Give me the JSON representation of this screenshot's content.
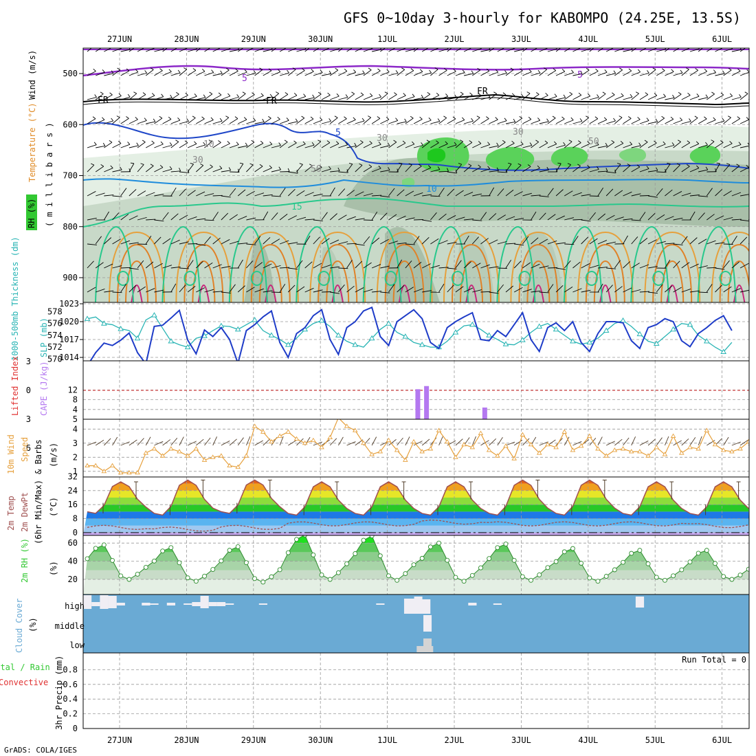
{
  "chart_data": {
    "type": "meteogram",
    "title": "GFS 0~10day 3-hourly for KABOMPO (24.25E, 13.5S)",
    "footer": "GrADS: COLA/IGES",
    "run_total_label": "Run Total = 0",
    "dates": [
      "27JUN",
      "28JUN",
      "29JUN",
      "30JUN",
      "1JUL",
      "2JUL",
      "3JUL",
      "4JUL",
      "5JUL",
      "6JUL"
    ],
    "colors": {
      "sea": "#6aaad4",
      "cloud_white": "#f0eef4",
      "cloud_grey": "#d4d4d4",
      "slp_line": "#1e3cc8",
      "thick_line": "#28b4b4",
      "cape_bar": "#b478f0",
      "wind_line": "#e6a03c",
      "rh_green": "#32c832",
      "temp_orange": "#e08c28",
      "temp_dew": "#a05050",
      "frz": "#000000"
    },
    "panels": {
      "upper": {
        "ylabel_wind": "Wind (m/s)",
        "ylabel_temp": "Temperature (°C)",
        "ylabel_rh": "RH (%)",
        "ylabel_mb": "( m i l l i b a r s )",
        "pressure_ticks": [
          500,
          600,
          700,
          800,
          900
        ],
        "contour_labels": [
          "5",
          "5",
          "FR",
          "FR",
          "FR",
          "5",
          "10",
          "15",
          "10",
          "30",
          "30",
          "50",
          "50",
          "30"
        ]
      },
      "slp": {
        "ylabel_left": "1000-500mb Thickness (dm)",
        "ylabel_right": "SLP (mb)",
        "left_ticks": [
          570,
          572,
          574,
          576,
          578
        ],
        "right_ticks": [
          1014,
          1017,
          1020,
          1023
        ],
        "slp_mb": [
          1012.6,
          1014.8,
          1016.4,
          1016.0,
          1016.9,
          1018.1,
          1014.8,
          1012.9,
          1019.2,
          1019.4,
          1020.6,
          1021.9,
          1016.9,
          1014.6,
          1018.6,
          1017.5,
          1019.0,
          1017.0,
          1013.0,
          1018.5,
          1019.5,
          1020.8,
          1021.8,
          1016.5,
          1014.0,
          1018.0,
          1019.0,
          1021.0,
          1022.0,
          1017.0,
          1014.5,
          1019.0,
          1020.0,
          1021.8,
          1022.4,
          1017.5,
          1016.0,
          1020.0,
          1021.0,
          1022.0,
          1020.5,
          1016.5,
          1015.5,
          1019.0,
          1020.0,
          1020.8,
          1021.5,
          1017.0,
          1016.8,
          1018.5,
          1017.5,
          1019.5,
          1021.5,
          1017.0,
          1015.0,
          1019.0,
          1019.8,
          1018.5,
          1020.0,
          1016.5,
          1015.0,
          1018.0,
          1020.0,
          1020.0,
          1019.8,
          1016.8,
          1015.5,
          1019.0,
          1019.5,
          1020.5,
          1020.0,
          1016.8,
          1015.8,
          1018.0,
          1019.0,
          1020.2,
          1021.0,
          1018.5
        ],
        "thick_dm": [
          576.8,
          577.1,
          576.0,
          575.8,
          575.1,
          574.8,
          573.5,
          576.6,
          577.4,
          575.2,
          573.0,
          572.4,
          572.0,
          573.5,
          573.9,
          574.8,
          575.6,
          575.5,
          575.0,
          575.8,
          576.6,
          574.8,
          574.0,
          573.3,
          572.4,
          573.5,
          575.0,
          576.0,
          576.5,
          575.5,
          574.0,
          573.0,
          572.4,
          572.0,
          573.5,
          575.0,
          576.0,
          574.5,
          573.8,
          572.8,
          572.4,
          572.0,
          572.0,
          573.0,
          574.5,
          575.6,
          575.8,
          575.0,
          574.0,
          573.3,
          572.5,
          572.4,
          573.2,
          574.5,
          575.5,
          576.0,
          575.0,
          574.0,
          573.0,
          572.5,
          572.8,
          573.5,
          574.8,
          576.0,
          576.5,
          575.5,
          574.2,
          573.0,
          572.6,
          573.8,
          575.0,
          576.0,
          575.8,
          574.0,
          573.0,
          572.0,
          571.2,
          572.8
        ]
      },
      "cape": {
        "ylabel_li": "Lifted Index",
        "ylabel_cape": "CAPE (J/kg)",
        "li_ticks": [
          -3,
          0,
          3,
          6
        ],
        "cape_ticks": [
          4,
          8,
          12
        ],
        "bars": [
          {
            "date_pos": 4.45,
            "value": 12.3
          },
          {
            "date_pos": 4.58,
            "value": 13.6
          },
          {
            "date_pos": 5.45,
            "value": 4.8
          }
        ]
      },
      "wind": {
        "ylabel": "10m Wind Speed & Barbs (m/s)",
        "ticks": [
          1,
          2,
          3,
          4
        ],
        "speed_ms": [
          1.4,
          1.4,
          1.0,
          1.4,
          0.9,
          0.9,
          0.9,
          2.3,
          2.6,
          2.1,
          2.6,
          2.4,
          2.1,
          2.6,
          1.8,
          2.0,
          2.1,
          1.4,
          1.3,
          2.1,
          4.2,
          3.8,
          3.1,
          3.5,
          3.8,
          3.3,
          3.0,
          3.2,
          2.7,
          3.4,
          4.8,
          4.2,
          3.9,
          3.0,
          2.2,
          2.4,
          3.2,
          2.5,
          1.8,
          3.1,
          2.4,
          2.6,
          3.9,
          3.1,
          2.0,
          2.9,
          2.7,
          3.7,
          2.5,
          2.1,
          2.8,
          1.9,
          3.6,
          2.9,
          2.3,
          2.9,
          2.7,
          3.8,
          2.5,
          2.8,
          3.5,
          2.6,
          2.1,
          2.5,
          2.6,
          2.4,
          2.4,
          2.1,
          2.7,
          2.2,
          3.5,
          2.3,
          2.7,
          2.6,
          3.9,
          2.9,
          2.5,
          2.4,
          2.6,
          3.1
        ]
      },
      "temp": {
        "ylabel": "2m Temp 2m DewPt (6hr Min/Max) (°C)",
        "ticks": [
          0,
          8,
          16,
          24,
          32
        ],
        "max_c": [
          29,
          30,
          30,
          29,
          29,
          29,
          30,
          30,
          29,
          29
        ],
        "min_c": [
          11,
          10,
          11,
          10,
          10,
          10,
          10,
          10,
          10,
          10
        ],
        "dew_c": [
          3,
          2,
          3,
          5,
          5,
          6,
          5,
          5,
          5,
          4
        ]
      },
      "rh": {
        "ylabel": "2m RH (%)",
        "ticks": [
          20,
          40,
          60
        ],
        "max_pct": [
          58,
          55,
          56,
          69,
          68,
          60,
          59,
          54,
          52,
          52
        ],
        "min_pct": [
          20,
          18,
          17,
          20,
          19,
          18,
          19,
          18,
          19,
          20
        ]
      },
      "cloud": {
        "ylabel": "Cloud Cover (%)",
        "levels": [
          "high",
          "middle",
          "low"
        ]
      },
      "precip": {
        "ylabel_total": "Total / Rain",
        "ylabel_conv": "Convective",
        "ylabel": "3hr Precip (mm)",
        "ticks": [
          0,
          0.2,
          0.4,
          0.6,
          0.8
        ]
      }
    }
  }
}
